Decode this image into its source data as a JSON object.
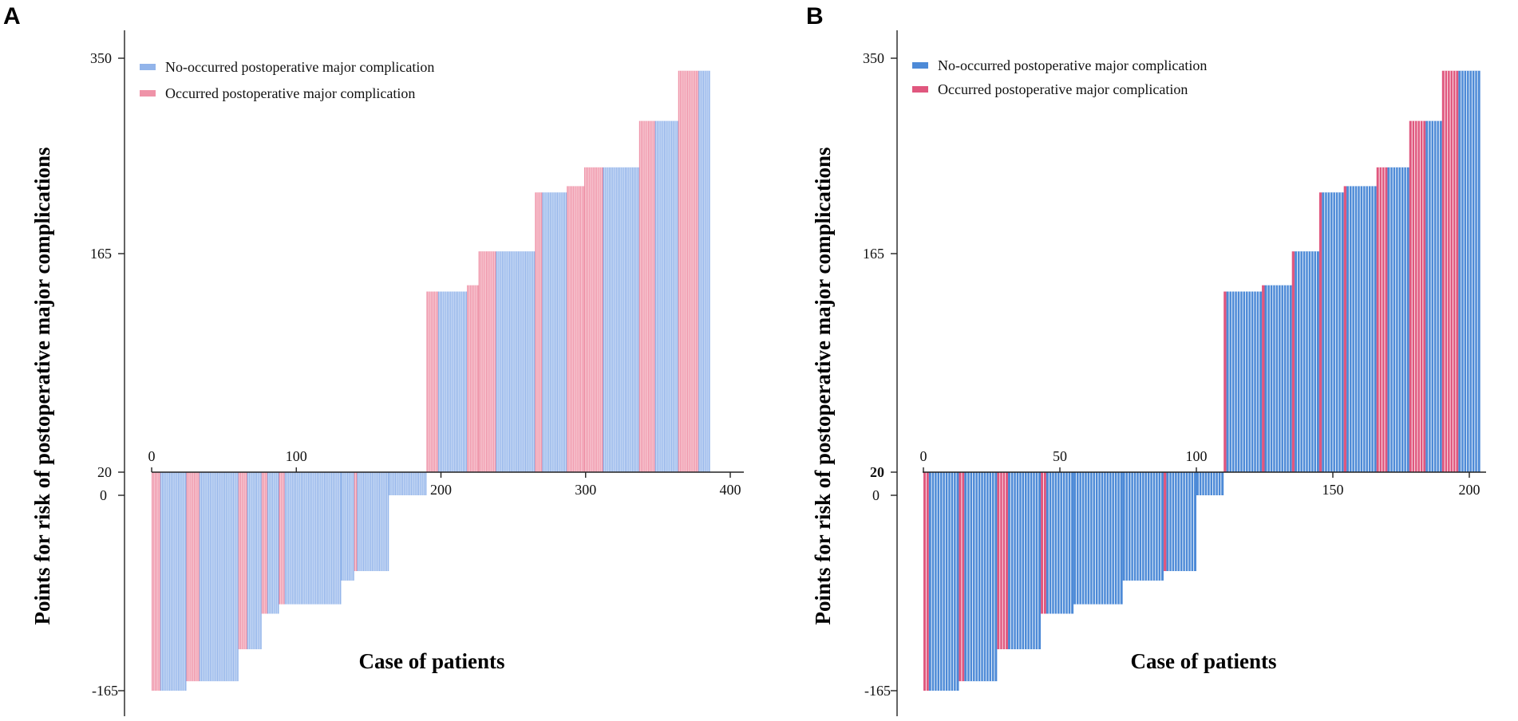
{
  "colors": {
    "no": "#92b4ea",
    "yes": "#ef93a8",
    "no_b": "#4d8ad7",
    "yes_b": "#e0577e"
  },
  "chart_data": [
    {
      "type": "bar",
      "panel": "A",
      "title": "",
      "xlabel": "Case of patients",
      "ylabel": "Points for risk of postoperative major complications",
      "x_ticks": [
        "0",
        "100",
        "200",
        "300",
        "400"
      ],
      "y_ticks": [
        "350",
        "165",
        "20",
        "0",
        "-165"
      ],
      "legend": [
        "No-occurred postoperative major complication",
        "Occurred postoperative major complication"
      ],
      "xlim": [
        0,
        400
      ],
      "ylim": [
        -165,
        350
      ],
      "n_cases": 386,
      "segments": [
        {
          "from": 0,
          "to": 6,
          "value": -165,
          "outcome": "occurred"
        },
        {
          "from": 6,
          "to": 24,
          "value": -165,
          "outcome": "none"
        },
        {
          "from": 24,
          "to": 33,
          "value": -157,
          "outcome": "occurred"
        },
        {
          "from": 33,
          "to": 60,
          "value": -157,
          "outcome": "none"
        },
        {
          "from": 60,
          "to": 66,
          "value": -130,
          "outcome": "occurred"
        },
        {
          "from": 66,
          "to": 76,
          "value": -130,
          "outcome": "none"
        },
        {
          "from": 76,
          "to": 80,
          "value": -100,
          "outcome": "occurred"
        },
        {
          "from": 80,
          "to": 88,
          "value": -100,
          "outcome": "none"
        },
        {
          "from": 88,
          "to": 92,
          "value": -92,
          "outcome": "occurred"
        },
        {
          "from": 92,
          "to": 131,
          "value": -92,
          "outcome": "none"
        },
        {
          "from": 131,
          "to": 140,
          "value": -72,
          "outcome": "none"
        },
        {
          "from": 140,
          "to": 142,
          "value": -64,
          "outcome": "occurred"
        },
        {
          "from": 142,
          "to": 164,
          "value": -64,
          "outcome": "none"
        },
        {
          "from": 164,
          "to": 190,
          "value": 0,
          "outcome": "none"
        },
        {
          "from": 190,
          "to": 198,
          "value": 164,
          "outcome": "occurred"
        },
        {
          "from": 198,
          "to": 218,
          "value": 164,
          "outcome": "none"
        },
        {
          "from": 218,
          "to": 226,
          "value": 169,
          "outcome": "occurred"
        },
        {
          "from": 226,
          "to": 238,
          "value": 196,
          "outcome": "occurred"
        },
        {
          "from": 238,
          "to": 265,
          "value": 196,
          "outcome": "none"
        },
        {
          "from": 265,
          "to": 270,
          "value": 243,
          "outcome": "occurred"
        },
        {
          "from": 270,
          "to": 287,
          "value": 243,
          "outcome": "none"
        },
        {
          "from": 287,
          "to": 299,
          "value": 248,
          "outcome": "occurred"
        },
        {
          "from": 299,
          "to": 312,
          "value": 263,
          "outcome": "occurred"
        },
        {
          "from": 312,
          "to": 337,
          "value": 263,
          "outcome": "none"
        },
        {
          "from": 337,
          "to": 348,
          "value": 300,
          "outcome": "occurred"
        },
        {
          "from": 348,
          "to": 364,
          "value": 300,
          "outcome": "none"
        },
        {
          "from": 364,
          "to": 378,
          "value": 340,
          "outcome": "occurred"
        },
        {
          "from": 378,
          "to": 386,
          "value": 340,
          "outcome": "none"
        }
      ]
    },
    {
      "type": "bar",
      "panel": "B",
      "title": "",
      "xlabel": "Case of patients",
      "ylabel": "Points for risk of postoperative major complications",
      "x_ticks": [
        "0",
        "50",
        "100",
        "150",
        "200"
      ],
      "y_ticks": [
        "350",
        "165",
        "20",
        "0",
        "-165"
      ],
      "legend": [
        "No-occurred postoperative major complication",
        "Occurred postoperative major complication"
      ],
      "xlim": [
        0,
        210
      ],
      "ylim": [
        -165,
        350
      ],
      "n_cases": 204,
      "segments": [
        {
          "from": 0,
          "to": 2,
          "value": -165,
          "outcome": "occurred"
        },
        {
          "from": 2,
          "to": 13,
          "value": -165,
          "outcome": "none"
        },
        {
          "from": 13,
          "to": 15,
          "value": -157,
          "outcome": "occurred"
        },
        {
          "from": 15,
          "to": 27,
          "value": -157,
          "outcome": "none"
        },
        {
          "from": 27,
          "to": 31,
          "value": -130,
          "outcome": "occurred"
        },
        {
          "from": 31,
          "to": 43,
          "value": -130,
          "outcome": "none"
        },
        {
          "from": 43,
          "to": 45,
          "value": -100,
          "outcome": "occurred"
        },
        {
          "from": 45,
          "to": 55,
          "value": -100,
          "outcome": "none"
        },
        {
          "from": 55,
          "to": 73,
          "value": -92,
          "outcome": "none"
        },
        {
          "from": 73,
          "to": 88,
          "value": -72,
          "outcome": "none"
        },
        {
          "from": 88,
          "to": 89,
          "value": -64,
          "outcome": "occurred"
        },
        {
          "from": 89,
          "to": 100,
          "value": -64,
          "outcome": "none"
        },
        {
          "from": 100,
          "to": 110,
          "value": 0,
          "outcome": "none"
        },
        {
          "from": 110,
          "to": 111,
          "value": 164,
          "outcome": "occurred"
        },
        {
          "from": 111,
          "to": 124,
          "value": 164,
          "outcome": "none"
        },
        {
          "from": 124,
          "to": 125,
          "value": 169,
          "outcome": "occurred"
        },
        {
          "from": 125,
          "to": 135,
          "value": 169,
          "outcome": "none"
        },
        {
          "from": 135,
          "to": 136,
          "value": 196,
          "outcome": "occurred"
        },
        {
          "from": 136,
          "to": 145,
          "value": 196,
          "outcome": "none"
        },
        {
          "from": 145,
          "to": 146,
          "value": 243,
          "outcome": "occurred"
        },
        {
          "from": 146,
          "to": 154,
          "value": 243,
          "outcome": "none"
        },
        {
          "from": 154,
          "to": 155,
          "value": 248,
          "outcome": "occurred"
        },
        {
          "from": 155,
          "to": 166,
          "value": 248,
          "outcome": "none"
        },
        {
          "from": 166,
          "to": 170,
          "value": 263,
          "outcome": "occurred"
        },
        {
          "from": 170,
          "to": 178,
          "value": 263,
          "outcome": "none"
        },
        {
          "from": 178,
          "to": 184,
          "value": 300,
          "outcome": "occurred"
        },
        {
          "from": 184,
          "to": 190,
          "value": 300,
          "outcome": "none"
        },
        {
          "from": 190,
          "to": 196,
          "value": 340,
          "outcome": "occurred"
        },
        {
          "from": 196,
          "to": 204,
          "value": 340,
          "outcome": "none"
        }
      ]
    }
  ]
}
